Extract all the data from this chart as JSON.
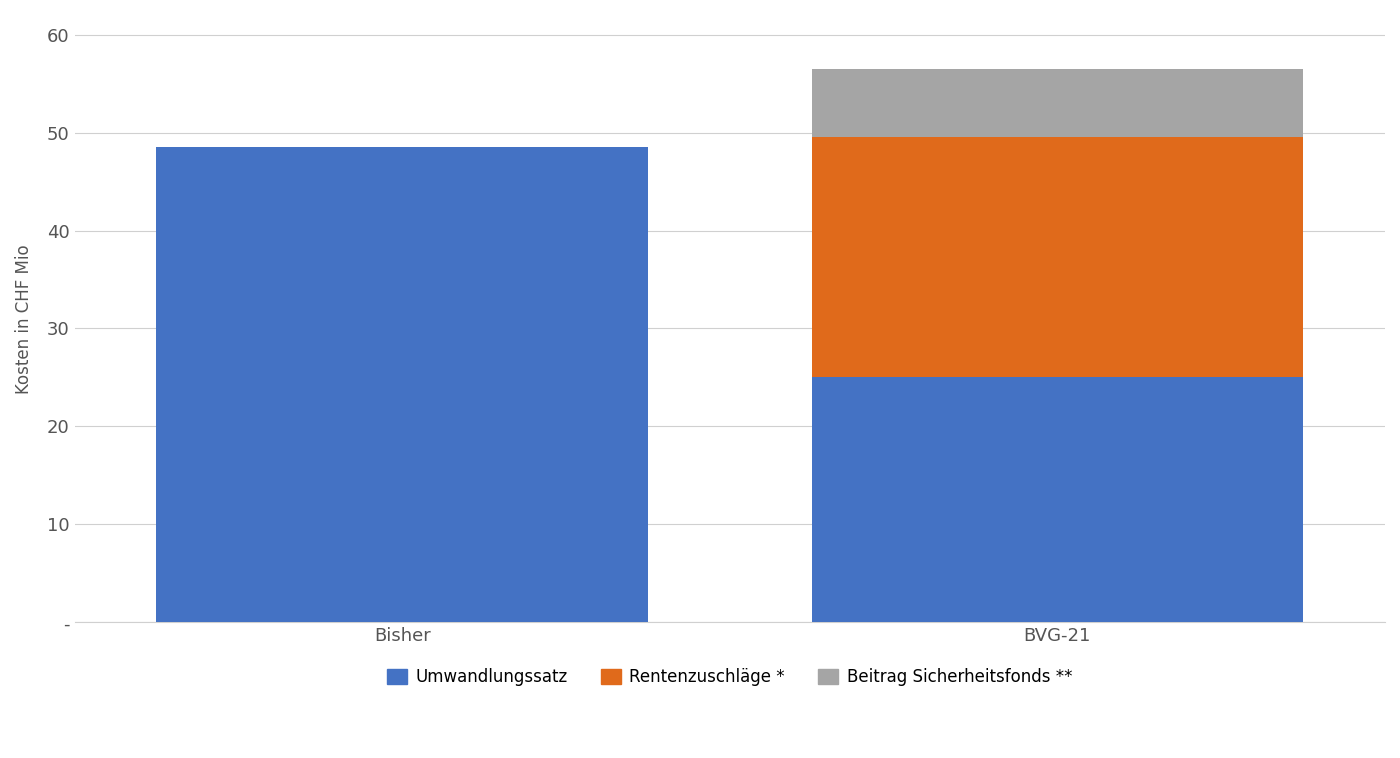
{
  "categories": [
    "Bisher",
    "BVG-21"
  ],
  "umwandlungssatz": [
    48.5,
    25.0
  ],
  "rentenzuschlaege": [
    0,
    24.5
  ],
  "beitrag_sicherheitsfonds": [
    0,
    7.0
  ],
  "colors": {
    "umwandlungssatz": "#4472C4",
    "rentenzuschlaege": "#E06A1B",
    "beitrag_sicherheitsfonds": "#A5A5A5"
  },
  "ylabel": "Kosten in CHF Mio",
  "ylim": [
    0,
    62
  ],
  "yticks": [
    0,
    10,
    20,
    30,
    40,
    50,
    60
  ],
  "ytick_labels": [
    "-",
    "10",
    "20",
    "30",
    "40",
    "50",
    "60"
  ],
  "legend_labels": [
    "Umwandlungssatz",
    "Rentenzuschläge *",
    "Beitrag Sicherheitsfonds **"
  ],
  "background_color": "#ffffff",
  "grid_color": "#d0d0d0",
  "bar_width": 0.75,
  "axis_fontsize": 12,
  "legend_fontsize": 12,
  "tick_fontsize": 13
}
